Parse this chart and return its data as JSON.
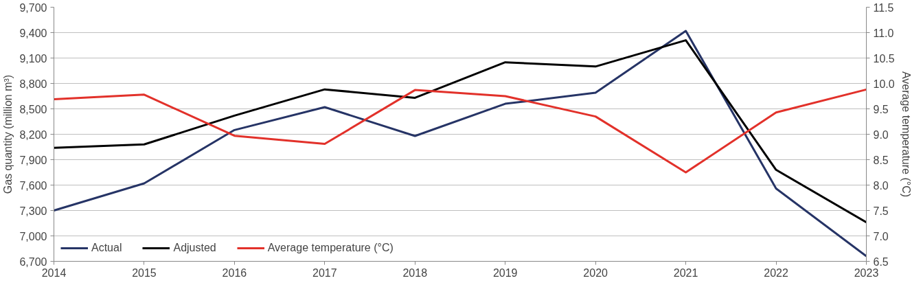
{
  "chart_data": {
    "type": "line",
    "ylabel": "Gas quantity (million m³)",
    "y2label": "Average temperature (°C)",
    "x": [
      2014,
      2015,
      2016,
      2017,
      2018,
      2019,
      2020,
      2021,
      2022,
      2023
    ],
    "xlim": [
      2014,
      2023
    ],
    "xticks": [
      2014,
      2015,
      2016,
      2017,
      2018,
      2019,
      2020,
      2021,
      2022,
      2023
    ],
    "ylim": [
      6700,
      9700
    ],
    "yticks": [
      {
        "value": 6700,
        "label": "6,700"
      },
      {
        "value": 7000,
        "label": "7,000"
      },
      {
        "value": 7300,
        "label": "7,300"
      },
      {
        "value": 7600,
        "label": "7,600"
      },
      {
        "value": 7900,
        "label": "7,900"
      },
      {
        "value": 8200,
        "label": "8,200"
      },
      {
        "value": 8500,
        "label": "8,500"
      },
      {
        "value": 8800,
        "label": "8,800"
      },
      {
        "value": 9100,
        "label": "9,100"
      },
      {
        "value": 9400,
        "label": "9,400"
      },
      {
        "value": 9700,
        "label": "9,700"
      }
    ],
    "y2lim": [
      6.5,
      11.5
    ],
    "y2ticks": [
      {
        "value": 6.5,
        "label": "6.5"
      },
      {
        "value": 7,
        "label": "7.0"
      },
      {
        "value": 7.5,
        "label": "7.5"
      },
      {
        "value": 8,
        "label": "8.0"
      },
      {
        "value": 8.5,
        "label": "8.5"
      },
      {
        "value": 9,
        "label": "9.0"
      },
      {
        "value": 9.5,
        "label": "9.5"
      },
      {
        "value": 10,
        "label": "10.0"
      },
      {
        "value": 10.5,
        "label": "10.5"
      },
      {
        "value": 11,
        "label": "11.0"
      },
      {
        "value": 11.5,
        "label": "11.5"
      }
    ],
    "grid": "y",
    "legend": "bottom left",
    "marker": "none",
    "line_style": "solid",
    "series": [
      {
        "name": "Actual",
        "color": "#263466",
        "values": [
          7300,
          7620,
          8250,
          8520,
          8180,
          8560,
          8690,
          9420,
          7560,
          6760
        ]
      },
      {
        "name": "Adjusted",
        "color": "#000000",
        "values": [
          8040,
          8080,
          8420,
          8730,
          8630,
          9050,
          9000,
          9310,
          7780,
          7160
        ]
      },
      {
        "name": "Average temperature (°C)",
        "color": "#e2312a",
        "axis": "y2",
        "values": [
          9.69,
          9.78,
          8.97,
          8.81,
          9.87,
          9.75,
          9.35,
          8.25,
          9.43,
          9.88
        ]
      }
    ]
  }
}
